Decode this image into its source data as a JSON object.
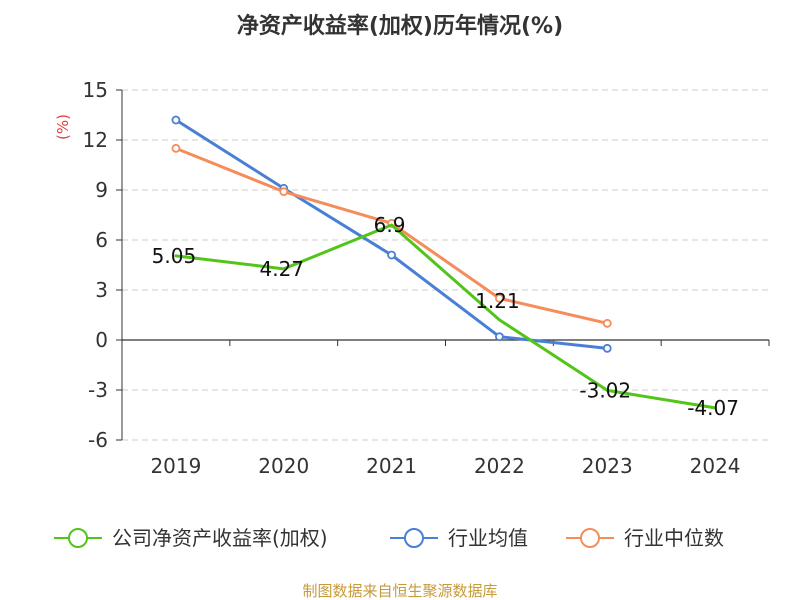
{
  "chart_data": {
    "type": "line",
    "title": "净资产收益率(加权)历年情况(%)",
    "ylabel": "(%)",
    "xlabel": "",
    "categories": [
      "2019",
      "2020",
      "2021",
      "2022",
      "2023",
      "2024"
    ],
    "ylim": [
      -6,
      15
    ],
    "yticks": [
      15,
      12,
      9,
      6,
      3,
      0,
      -3,
      -6
    ],
    "grid": true,
    "legend_position": "bottom",
    "series": [
      {
        "name": "公司净资产收益率(加权)",
        "color": "#52c41a",
        "values": [
          5.05,
          4.27,
          6.9,
          1.21,
          -3.02,
          -4.07
        ],
        "labels": [
          "5.05",
          "4.27",
          "6.9",
          "1.21",
          "-3.02",
          "-4.07"
        ]
      },
      {
        "name": "行业均值",
        "color": "#4a7fd6",
        "values": [
          13.2,
          9.1,
          5.1,
          0.2,
          -0.5,
          null
        ]
      },
      {
        "name": "行业中位数",
        "color": "#f58d5a",
        "values": [
          11.5,
          8.9,
          7.0,
          2.5,
          1.0,
          null
        ]
      }
    ]
  },
  "colors": {
    "ylabel": "#e0413a",
    "footer": "#c79a3a",
    "axis": "#333333",
    "grid": "#cccccc"
  },
  "footer": "制图数据来自恒生聚源数据库"
}
